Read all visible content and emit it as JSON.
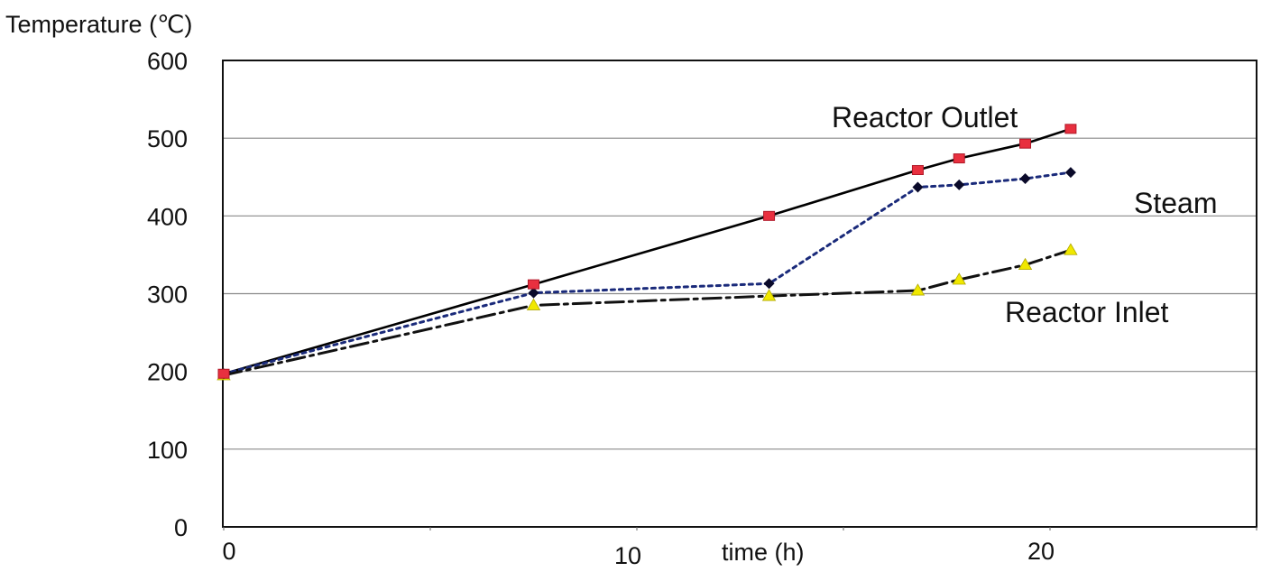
{
  "chart_data": {
    "type": "line",
    "title": "",
    "xlabel": "time (h)",
    "ylabel": "Temperature (℃)",
    "xlim": [
      0,
      25
    ],
    "ylim": [
      0,
      600
    ],
    "yticks": [
      0,
      100,
      200,
      300,
      400,
      500,
      600
    ],
    "xticks": [
      0,
      10,
      20
    ],
    "grid": "horizontal",
    "legend": "none (series labeled directly on the plot)",
    "series": [
      {
        "name": "Reactor Outlet",
        "marker": "square",
        "line_style": "solid",
        "color": "#e8303f",
        "line_color": "#000000",
        "x": [
          0,
          7.5,
          13.2,
          16.8,
          17.8,
          19.4,
          20.5
        ],
        "y": [
          197,
          312,
          400,
          459,
          474,
          493,
          512
        ]
      },
      {
        "name": "Steam",
        "marker": "diamond",
        "line_style": "dotted",
        "color": "#0a0a2a",
        "line_color": "#1a2a7a",
        "x": [
          0,
          7.5,
          13.2,
          16.8,
          17.8,
          19.4,
          20.5
        ],
        "y": [
          197,
          301,
          313,
          437,
          440,
          448,
          456
        ]
      },
      {
        "name": "Reactor Inlet",
        "marker": "triangle",
        "line_style": "dash-dot",
        "color": "#f0e800",
        "line_color": "#111111",
        "x": [
          0,
          7.5,
          13.2,
          16.8,
          17.8,
          19.4,
          20.5
        ],
        "y": [
          195,
          285,
          297,
          304,
          318,
          337,
          356
        ]
      }
    ]
  }
}
